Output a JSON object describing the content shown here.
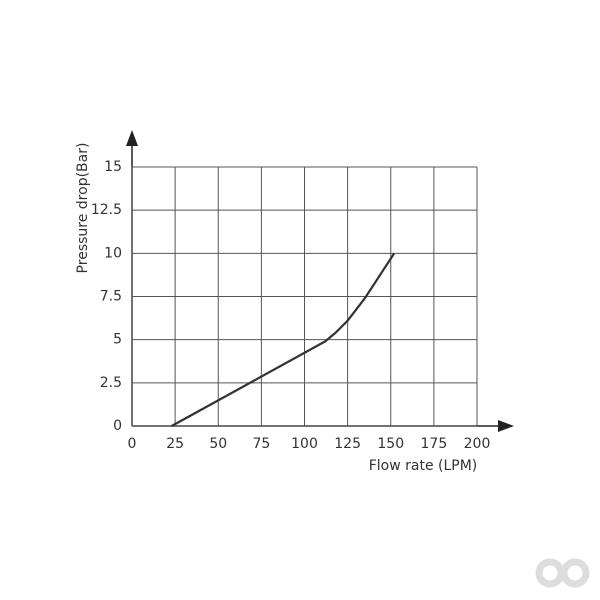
{
  "chart_data": {
    "type": "line",
    "x_label": "Flow rate (LPM)",
    "y_label": "Pressure drop(Bar)",
    "series": [
      {
        "color": "#333333",
        "x": [
          23,
          112,
          118,
          125,
          135,
          152
        ],
        "values": [
          0,
          4.9,
          5.4,
          6.1,
          7.4,
          10
        ]
      }
    ],
    "xlim": [
      0,
      200
    ],
    "xticks": [
      0,
      25,
      50,
      75,
      100,
      125,
      150,
      175,
      200
    ],
    "ylim": [
      0,
      15
    ],
    "yticks": [
      0,
      2.5,
      5,
      7.5,
      10,
      12.5,
      15
    ],
    "grid": true
  }
}
